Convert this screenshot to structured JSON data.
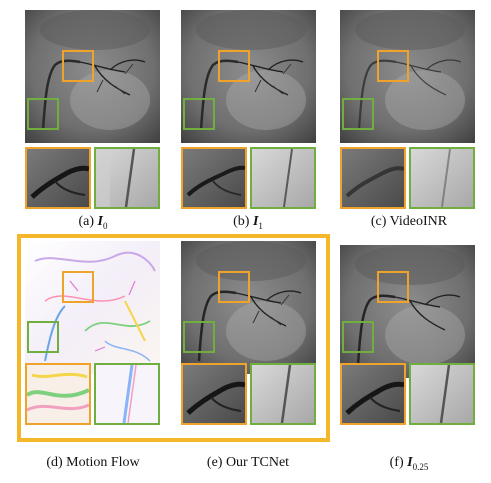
{
  "figure": {
    "highlight_color": "#f5b72a",
    "zoom_box_colors": {
      "orange": "#f0a32a",
      "green": "#6fae3f"
    },
    "panels": [
      {
        "id": "a",
        "caption_prefix": "(a) ",
        "caption_symbol": "I",
        "caption_sub": "0",
        "caption_text": ""
      },
      {
        "id": "b",
        "caption_prefix": "(b) ",
        "caption_symbol": "I",
        "caption_sub": "1",
        "caption_text": ""
      },
      {
        "id": "c",
        "caption_prefix": "",
        "caption_symbol": "",
        "caption_sub": "",
        "caption_text": "(c) VideoINR"
      },
      {
        "id": "d",
        "caption_prefix": "",
        "caption_symbol": "",
        "caption_sub": "",
        "caption_text": "(d) Motion Flow"
      },
      {
        "id": "e",
        "caption_prefix": "",
        "caption_symbol": "",
        "caption_sub": "",
        "caption_text": "(e) Our TCNet"
      },
      {
        "id": "f",
        "caption_prefix": "(f) ",
        "caption_symbol": "I",
        "caption_sub": "0.25",
        "caption_text": ""
      }
    ]
  }
}
